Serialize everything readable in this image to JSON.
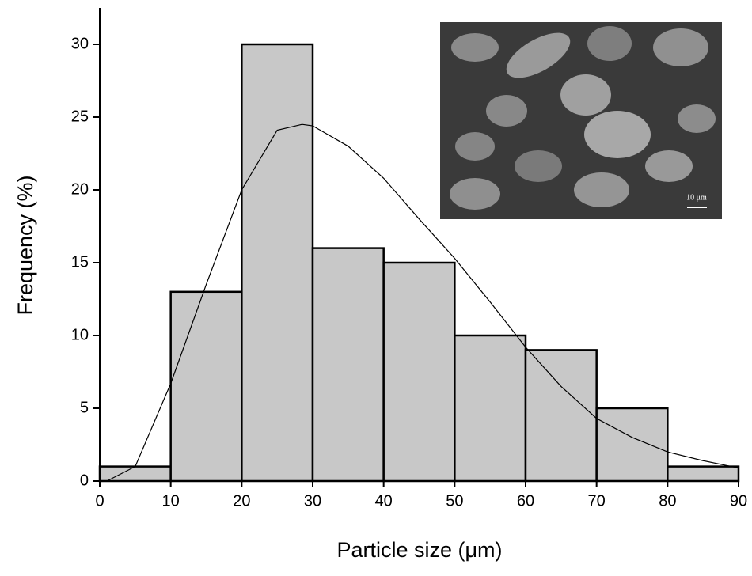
{
  "chart_data": {
    "type": "histogram",
    "xlabel": "Particle size (μm)",
    "ylabel": "Frequency (%)",
    "bins": [
      0,
      10,
      20,
      30,
      40,
      50,
      60,
      70,
      80,
      90
    ],
    "values": [
      1,
      13,
      30,
      16,
      15,
      10,
      9,
      5,
      1
    ],
    "color": "#c8c8c8",
    "xlim": [
      0,
      90
    ],
    "ylim": [
      0,
      32.5
    ],
    "xticks": [
      0,
      10,
      20,
      30,
      40,
      50,
      60,
      70,
      80,
      90
    ],
    "yticks": [
      0,
      5,
      10,
      15,
      20,
      25,
      30
    ],
    "fit": {
      "x": [
        1,
        5,
        10,
        15,
        20,
        25,
        28.5,
        30,
        35,
        40,
        45,
        50,
        55,
        60,
        65,
        70,
        75,
        80,
        85,
        90
      ],
      "values": [
        0,
        1,
        6.7,
        13.5,
        20,
        24.1,
        24.5,
        24.4,
        23,
        20.8,
        18,
        15.3,
        12.3,
        9.2,
        6.5,
        4.3,
        3,
        2,
        1.4,
        0.9
      ],
      "color": "#000000"
    },
    "inset_label": "10 μm"
  }
}
